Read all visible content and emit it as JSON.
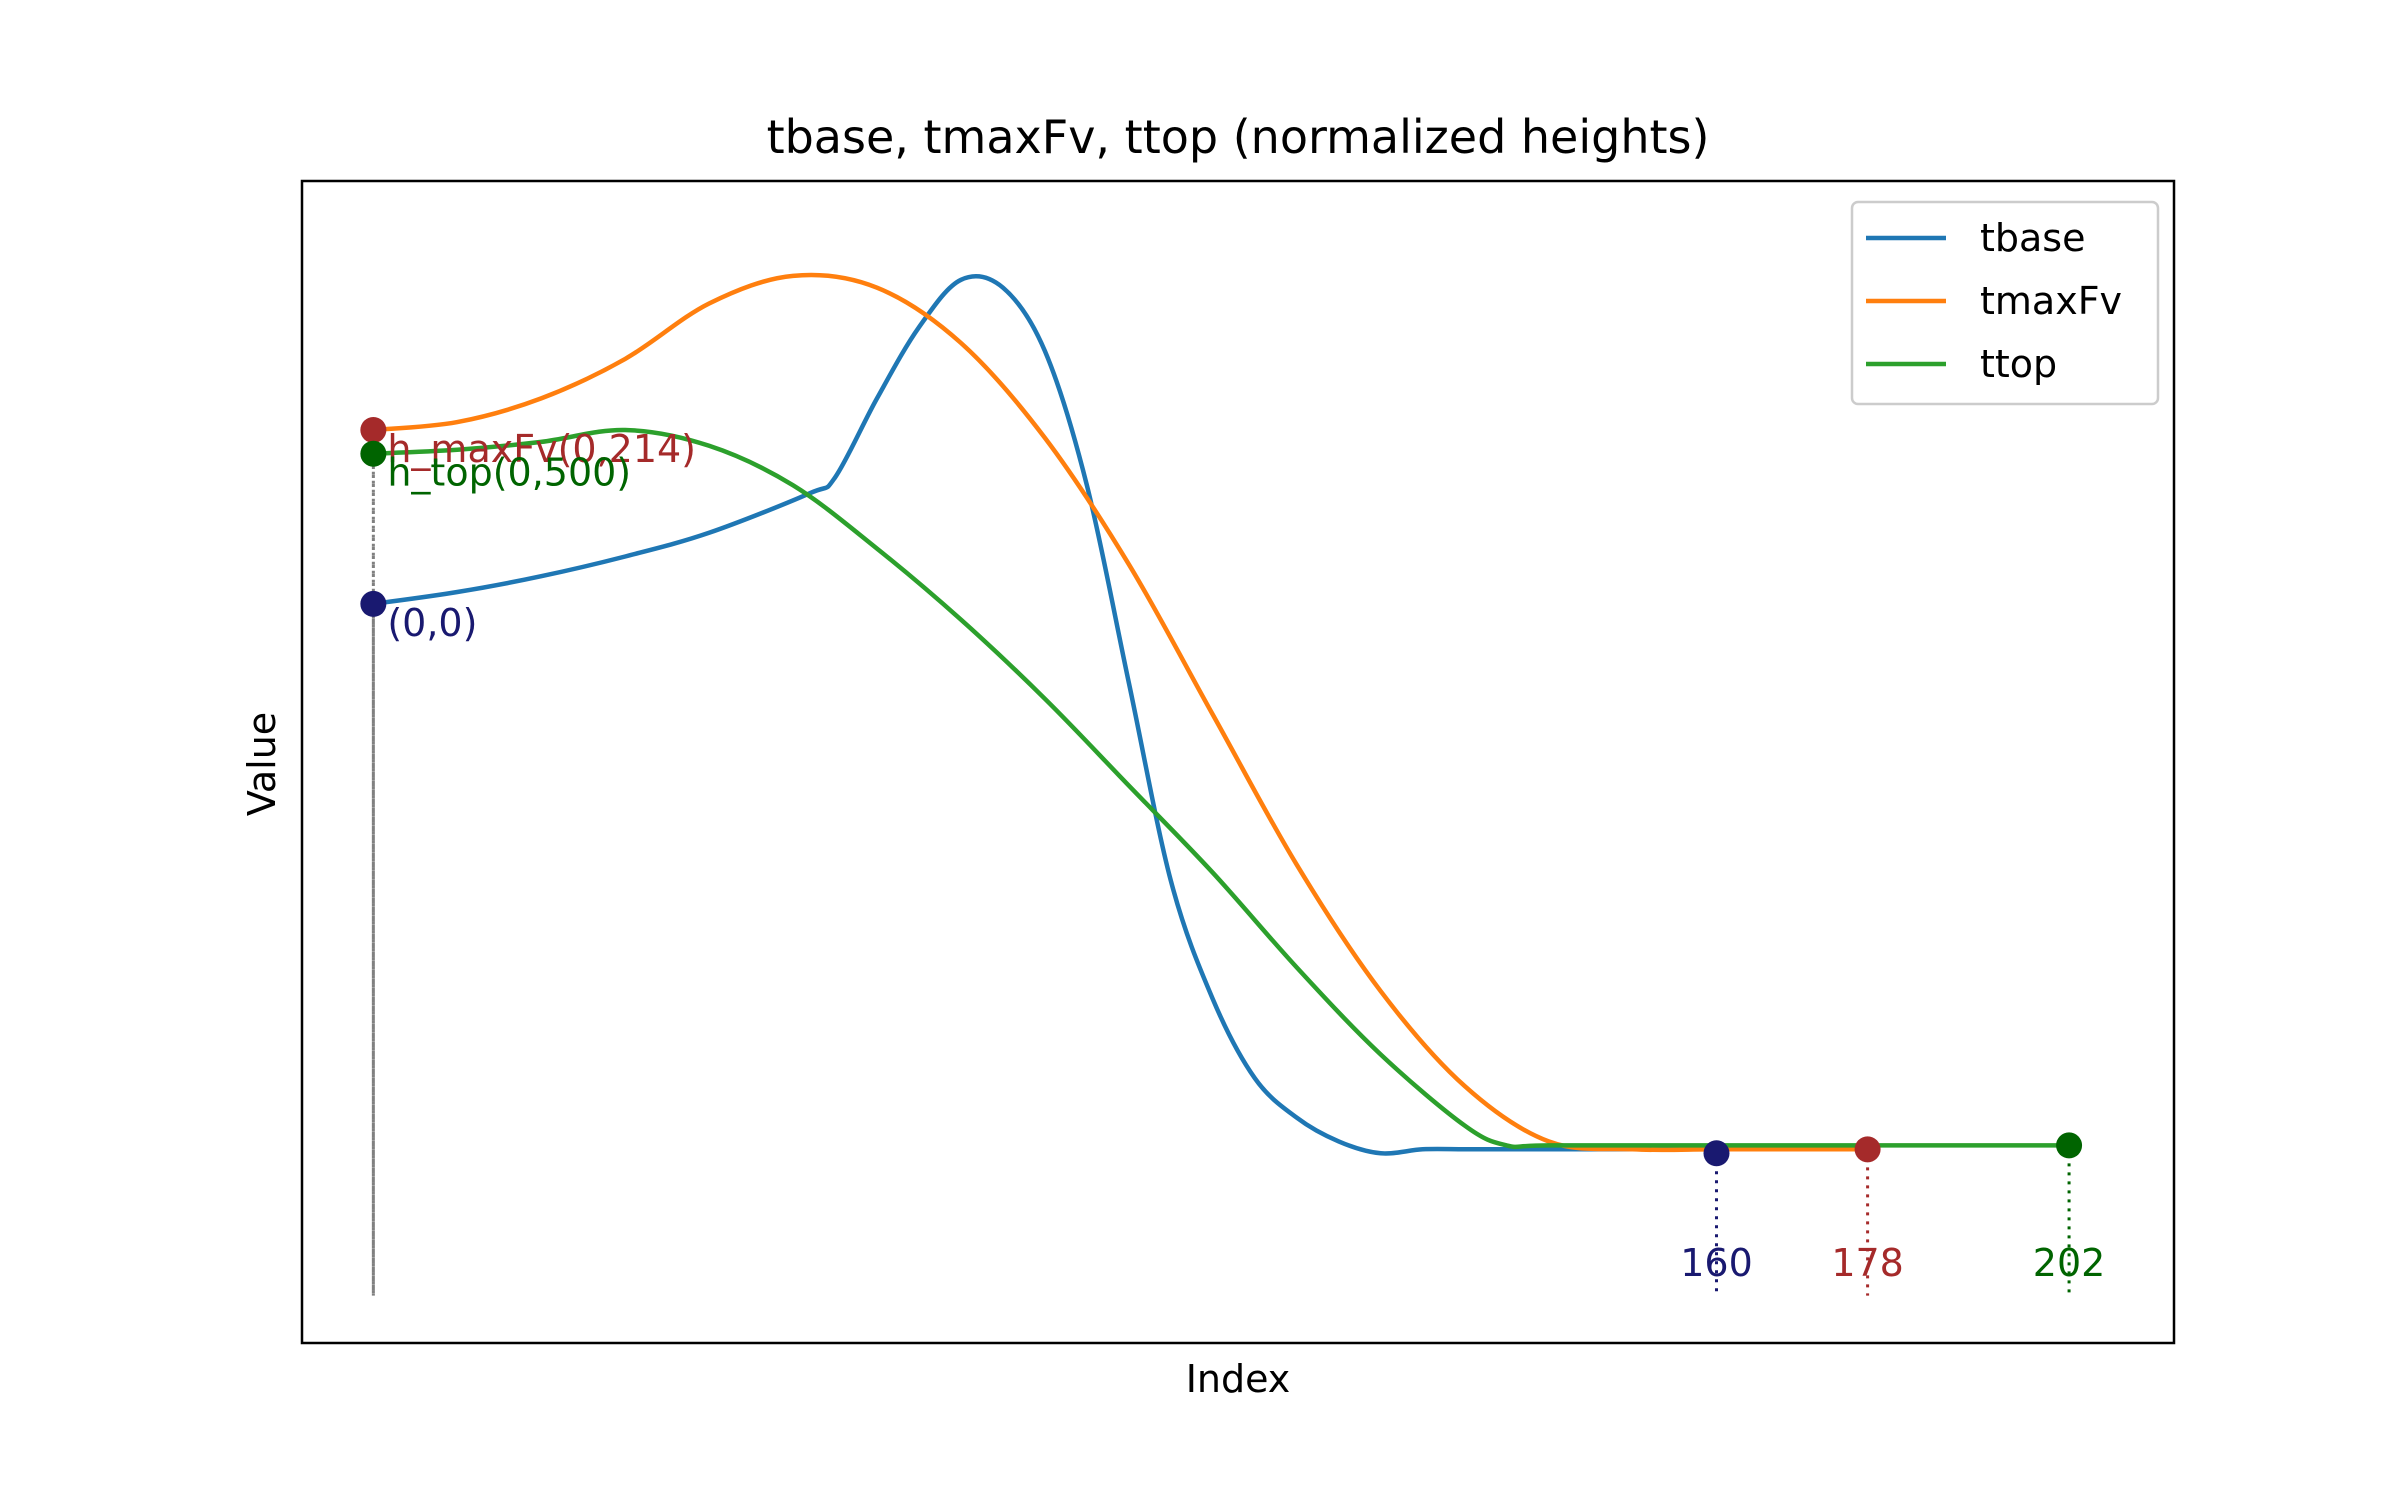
{
  "chart_data": {
    "type": "line",
    "title": "tbase, tmaxFv, ttop (normalized heights)",
    "xlabel": "Index",
    "ylabel": "Value",
    "xlim": [
      -8.5,
      214.5
    ],
    "ylim": [
      -0.235,
      1.235
    ],
    "ticks_visible": false,
    "grid": false,
    "legend_position": "top-right",
    "series": [
      {
        "name": "tbase",
        "color": "#1f77b4",
        "x": [
          0,
          10,
          20,
          30,
          40,
          52,
          55,
          60,
          65,
          70,
          75,
          80,
          85,
          90,
          95,
          100,
          105,
          110,
          115,
          120,
          125,
          130,
          135,
          140,
          160
        ],
        "y": [
          0.7,
          0.715,
          0.735,
          0.76,
          0.79,
          0.84,
          0.86,
          0.96,
          1.05,
          1.11,
          1.1,
          1.02,
          0.85,
          0.6,
          0.35,
          0.2,
          0.1,
          0.05,
          0.02,
          0.005,
          0.01,
          0.01,
          0.01,
          0.01,
          0.01
        ]
      },
      {
        "name": "tmaxFv",
        "color": "#ff7f0e",
        "x": [
          0,
          10,
          20,
          30,
          40,
          50,
          60,
          70,
          80,
          90,
          100,
          110,
          120,
          130,
          140,
          150,
          160,
          170,
          178
        ],
        "y": [
          0.92,
          0.93,
          0.96,
          1.01,
          1.08,
          1.115,
          1.1,
          1.03,
          0.91,
          0.75,
          0.56,
          0.37,
          0.21,
          0.09,
          0.02,
          0.01,
          0.01,
          0.01,
          0.01
        ]
      },
      {
        "name": "ttop",
        "color": "#2ca02c",
        "x": [
          0,
          10,
          20,
          30,
          40,
          50,
          60,
          70,
          80,
          90,
          100,
          110,
          120,
          130,
          135,
          140,
          160,
          180,
          202
        ],
        "y": [
          0.89,
          0.895,
          0.905,
          0.92,
          0.9,
          0.85,
          0.77,
          0.68,
          0.58,
          0.47,
          0.36,
          0.24,
          0.13,
          0.04,
          0.015,
          0.015,
          0.015,
          0.015,
          0.015
        ]
      }
    ],
    "annotations": [
      {
        "label": "(0,0)",
        "x": 0,
        "y": 0.7,
        "color": "#191970",
        "drop_x": 0
      },
      {
        "label": "h_maxFv(0,214)",
        "x": 0,
        "y": 0.92,
        "color": "#a52a2a",
        "drop_x": 0
      },
      {
        "label": "h_top(0,500)",
        "x": 0,
        "y": 0.89,
        "color": "#006400",
        "drop_x": 0
      },
      {
        "label": "160",
        "x": 160,
        "y": 0.005,
        "color": "#191970",
        "drop_x": 160
      },
      {
        "label": "178",
        "x": 178,
        "y": 0.01,
        "color": "#a52a2a",
        "drop_x": 178
      },
      {
        "label": "202",
        "x": 202,
        "y": 0.015,
        "color": "#006400",
        "drop_x": 202
      }
    ]
  }
}
